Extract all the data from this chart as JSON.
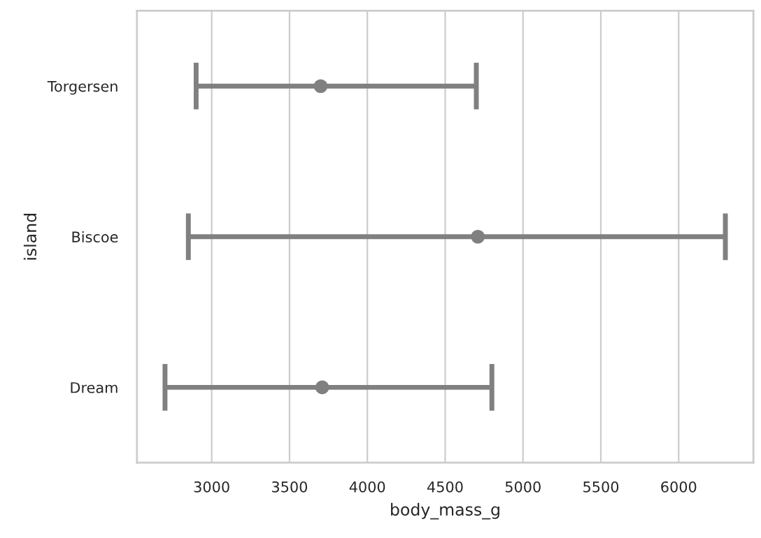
{
  "chart_data": {
    "type": "scatter",
    "orientation": "horizontal",
    "xlabel": "body_mass_g",
    "ylabel": "island",
    "categories": [
      "Torgersen",
      "Biscoe",
      "Dream"
    ],
    "values": [
      3700,
      4710,
      3710
    ],
    "errors": [
      [
        2900,
        4700
      ],
      [
        2850,
        6300
      ],
      [
        2700,
        4800
      ]
    ],
    "color": "#808080",
    "marker": "circle",
    "xlim": [
      2520,
      6480
    ],
    "xticks": [
      3000,
      3500,
      4000,
      4500,
      5000,
      5500,
      6000
    ],
    "grid": "x",
    "legend": false
  }
}
